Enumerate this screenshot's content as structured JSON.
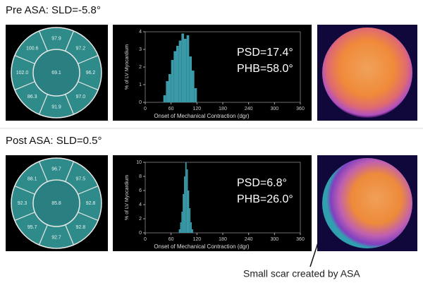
{
  "panels": [
    {
      "title": "Pre ASA: SLD=-5.8°",
      "polar_map": {
        "segments": [
          "97.9",
          "97.2",
          "96.2",
          "97.0",
          "91.9",
          "86.3",
          "102.0",
          "100.6"
        ],
        "center": "69.1"
      },
      "histogram": {
        "y_label": "% of LV Myocardium",
        "x_label": "Onset of Mechanical Contraction (dgr)",
        "xlim": [
          0,
          360
        ],
        "xticks": [
          0,
          60,
          120,
          180,
          240,
          300,
          360
        ],
        "ylim": [
          0,
          4
        ],
        "yticks": [
          0,
          1,
          2,
          3,
          4
        ],
        "bins": [
          42,
          48,
          54,
          60,
          66,
          72,
          78,
          84,
          90,
          96,
          102,
          108,
          114,
          120
        ],
        "counts": [
          0.4,
          1.2,
          1.6,
          2.4,
          2.9,
          3.2,
          3.5,
          3.9,
          3.6,
          3.8,
          2.6,
          1.8,
          0.8
        ],
        "psd": "PSD=17.4°",
        "phb": "PHB=58.0°"
      }
    },
    {
      "title": "Post ASA: SLD=0.5°",
      "polar_map": {
        "segments": [
          "96.7",
          "97.5",
          "92.8",
          "92.8",
          "92.7",
          "95.7",
          "92.3",
          "88.1"
        ],
        "center": "85.8"
      },
      "histogram": {
        "y_label": "% of LV Myocardium",
        "x_label": "Onset of Mechanical Contraction (dgr)",
        "xlim": [
          0,
          360
        ],
        "xticks": [
          0,
          60,
          120,
          180,
          240,
          300,
          360
        ],
        "ylim": [
          0,
          10
        ],
        "yticks": [
          0,
          2,
          4,
          6,
          8,
          10
        ],
        "bins": [
          78,
          81,
          84,
          87,
          90,
          93,
          96,
          99,
          102,
          105,
          108,
          111
        ],
        "counts": [
          0.5,
          1.5,
          3,
          5.5,
          8,
          10,
          9,
          6,
          3.5,
          1.5,
          0.5
        ],
        "psd": "PSD=6.8°",
        "phb": "PHB=26.0°"
      }
    }
  ],
  "annotation": "Small scar created by ASA"
}
